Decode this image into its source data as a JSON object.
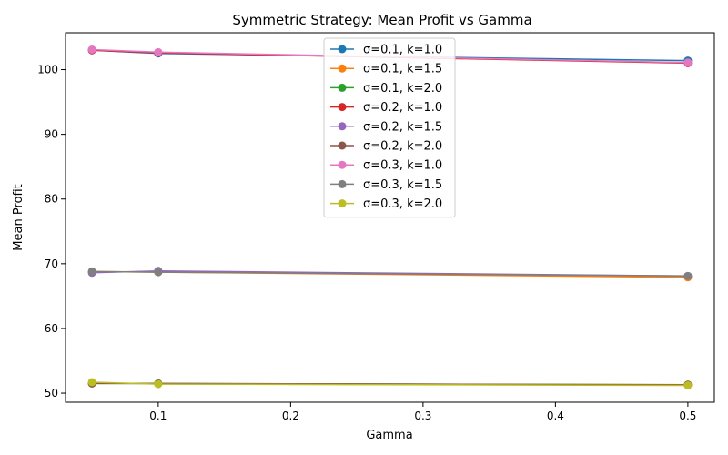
{
  "chart_data": {
    "type": "line",
    "title": "Symmetric Strategy: Mean Profit vs Gamma",
    "xlabel": "Gamma",
    "ylabel": "Mean Profit",
    "x": [
      0.05,
      0.1,
      0.5
    ],
    "xlim": [
      0.03,
      0.52
    ],
    "ylim": [
      48.6,
      105.7
    ],
    "xticks": [
      0.1,
      0.2,
      0.3,
      0.4,
      0.5
    ],
    "xtick_labels": [
      "0.1",
      "0.2",
      "0.3",
      "0.4",
      "0.5"
    ],
    "yticks": [
      50,
      60,
      70,
      80,
      90,
      100
    ],
    "ytick_labels": [
      "50",
      "60",
      "70",
      "80",
      "90",
      "100"
    ],
    "grid": false,
    "legend_position": "top-center",
    "series": [
      {
        "name": "σ=0.1, k=1.0",
        "color": "#1f77b4",
        "values": [
          103.0,
          102.5,
          101.4
        ]
      },
      {
        "name": "σ=0.1, k=1.5",
        "color": "#ff7f0e",
        "values": [
          68.8,
          68.7,
          67.9
        ]
      },
      {
        "name": "σ=0.1, k=2.0",
        "color": "#2ca02c",
        "values": [
          51.5,
          51.5,
          51.3
        ]
      },
      {
        "name": "σ=0.2, k=1.0",
        "color": "#d62728",
        "values": [
          103.0,
          102.6,
          101.0
        ]
      },
      {
        "name": "σ=0.2, k=1.5",
        "color": "#9467bd",
        "values": [
          68.6,
          68.9,
          68.1
        ]
      },
      {
        "name": "σ=0.2, k=2.0",
        "color": "#8c564b",
        "values": [
          51.5,
          51.5,
          51.3
        ]
      },
      {
        "name": "σ=0.3, k=1.0",
        "color": "#e377c2",
        "values": [
          103.1,
          102.7,
          101.1
        ]
      },
      {
        "name": "σ=0.3, k=1.5",
        "color": "#7f7f7f",
        "values": [
          68.8,
          68.7,
          68.1
        ]
      },
      {
        "name": "σ=0.3, k=2.0",
        "color": "#bcbd22",
        "values": [
          51.7,
          51.4,
          51.2
        ]
      }
    ]
  }
}
